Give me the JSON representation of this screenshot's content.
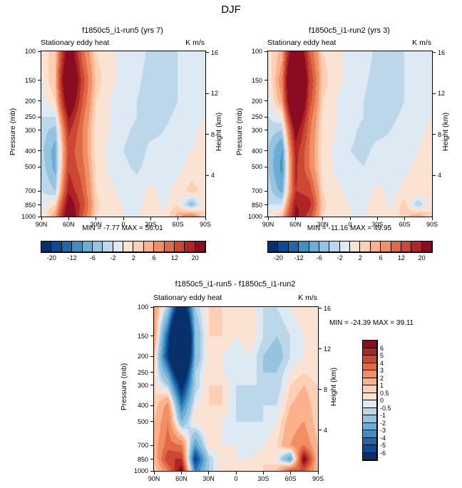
{
  "page_title": "DJF",
  "axes": {
    "pressure_label": "Pressure (mb)",
    "height_label": "Height (km)",
    "pressure_ticks": [
      100,
      150,
      200,
      250,
      300,
      400,
      500,
      700,
      850,
      1000
    ],
    "height_ticks": [
      16,
      12,
      8,
      4
    ],
    "lat_ticks": [
      "90N",
      "60N",
      "30N",
      "0",
      "30S",
      "60S",
      "90S"
    ]
  },
  "colorbars": {
    "flux": {
      "orientation": "horizontal",
      "boundaries": [
        -20,
        -16,
        -12,
        -9,
        -6,
        -4,
        -2,
        0,
        2,
        4,
        6,
        9,
        12,
        16,
        20
      ],
      "colors": [
        "#08306b",
        "#0d4a93",
        "#2166ac",
        "#3f8fc0",
        "#6aadd5",
        "#94c4df",
        "#bdd7ea",
        "#dde9f3",
        "#fbe3d4",
        "#fdd0b5",
        "#fcb18d",
        "#f28e63",
        "#e06a46",
        "#cc4734",
        "#b02425",
        "#8a0c20"
      ],
      "tick_labels": [
        "-20",
        "-12",
        "-6",
        "-2",
        "2",
        "6",
        "12",
        "20"
      ],
      "tick_boundary_indices": [
        0,
        2,
        4,
        6,
        8,
        10,
        12,
        14
      ]
    },
    "diff": {
      "orientation": "vertical",
      "boundaries": [
        -6,
        -5,
        -4,
        -3,
        -2,
        -1,
        -0.5,
        0,
        0.5,
        1,
        2,
        3,
        4,
        5,
        6
      ],
      "colors": [
        "#08306b",
        "#0d4a93",
        "#2166ac",
        "#3f8fc0",
        "#6aadd5",
        "#94c4df",
        "#bdd7ea",
        "#dde9f3",
        "#fbe3d4",
        "#fdd0b5",
        "#fcb18d",
        "#f28e63",
        "#e06a46",
        "#cc4734",
        "#b02425",
        "#8a0c20"
      ],
      "tick_labels_top_to_bottom": [
        "6",
        "5",
        "4",
        "3",
        "2",
        "1",
        "0.5",
        "0",
        "-0.5",
        "-1",
        "-2",
        "-3",
        "-4",
        "-5",
        "-6"
      ]
    }
  },
  "chart_data": [
    {
      "type": "heatmap",
      "title": "f1850c5_i1-run5 (yrs 7)",
      "subtitle": "Stationary eddy heat",
      "units": "K m/s",
      "ylabel": "Pressure (mb)",
      "ylabel_right": "Height (km)",
      "xlabel": "",
      "minmax": "MIN = -7.77  MAX =  56.01",
      "min": -7.77,
      "max": 56.01,
      "colorbar": "flux",
      "x": [
        "90N",
        "75N",
        "60N",
        "45N",
        "30N",
        "15N",
        "0",
        "15S",
        "30S",
        "45S",
        "60S",
        "75S",
        "90S"
      ],
      "pressure_levels": [
        100,
        150,
        200,
        250,
        300,
        400,
        500,
        700,
        850,
        1000
      ],
      "values": [
        [
          1,
          3,
          26,
          10,
          2,
          0.5,
          -0.5,
          -1,
          -2.5,
          -3,
          -2,
          -0.5,
          0
        ],
        [
          0,
          4,
          34,
          14,
          3,
          0.5,
          -0.5,
          -1.5,
          -3,
          -3.5,
          -2,
          -0.5,
          0
        ],
        [
          -1,
          2,
          28,
          12,
          2,
          0,
          -1,
          -2,
          -3.5,
          -3,
          -2,
          -0.5,
          0
        ],
        [
          -2,
          -2,
          21,
          10,
          1.5,
          0,
          -1,
          -2,
          -3,
          -2.5,
          -1.5,
          -0.5,
          0
        ],
        [
          -3,
          -5,
          17,
          9,
          1,
          0,
          -1.5,
          -2.5,
          -2.5,
          -2,
          -1,
          -0.5,
          0.5
        ],
        [
          -3.5,
          -7,
          14,
          9,
          1,
          -0.5,
          -2,
          -3,
          -1.5,
          -1.5,
          -0.5,
          0,
          0.5
        ],
        [
          -3,
          -7,
          15,
          10,
          1.5,
          -0.5,
          -1.5,
          -2.5,
          -1,
          -1,
          -0.5,
          0.5,
          1
        ],
        [
          -2,
          -4,
          19,
          12,
          2,
          0.5,
          -0.5,
          -1,
          0.5,
          -0.5,
          0.5,
          3,
          1
        ],
        [
          -1,
          2,
          24,
          14,
          2.5,
          0.5,
          0,
          -0.5,
          1,
          -0.5,
          2,
          -6,
          2
        ],
        [
          0,
          6,
          28,
          12,
          2,
          0.5,
          0,
          0,
          1,
          0.5,
          5,
          9,
          2
        ]
      ]
    },
    {
      "type": "heatmap",
      "title": "f1850c5_i1-run2 (yrs 3)",
      "subtitle": "Stationary eddy heat",
      "units": "K m/s",
      "ylabel": "Pressure (mb)",
      "ylabel_right": "Height (km)",
      "xlabel": "",
      "minmax": "MIN = -11.16  MAX =  49.95",
      "min": -11.16,
      "max": 49.95,
      "colorbar": "flux",
      "x": [
        "90N",
        "75N",
        "60N",
        "45N",
        "30N",
        "15N",
        "0",
        "15S",
        "30S",
        "45S",
        "60S",
        "75S",
        "90S"
      ],
      "pressure_levels": [
        100,
        150,
        200,
        250,
        300,
        400,
        500,
        700,
        850,
        1000
      ],
      "values": [
        [
          1,
          5,
          32,
          12,
          2,
          0.5,
          -0.5,
          -1,
          -2.5,
          -3,
          -2,
          -0.5,
          0
        ],
        [
          0,
          8,
          44,
          16,
          3,
          0.5,
          -0.5,
          -1.5,
          -3,
          -3.5,
          -2,
          -0.5,
          0
        ],
        [
          -1,
          6,
          40,
          14,
          2,
          0,
          -1,
          -2,
          -3.5,
          -3,
          -2,
          -0.5,
          0
        ],
        [
          -2,
          0,
          30,
          11,
          1.5,
          0,
          -1,
          -2,
          -3,
          -2.5,
          -1.5,
          -0.5,
          0
        ],
        [
          -3,
          -4,
          23,
          10,
          1,
          0,
          -1.5,
          -2.5,
          -2.5,
          -2,
          -1,
          -0.5,
          0.5
        ],
        [
          -4,
          -9,
          18,
          9,
          1,
          -0.5,
          -2,
          -2.5,
          -1.5,
          -1.5,
          -0.5,
          0,
          0.5
        ],
        [
          -4,
          -10,
          17,
          9,
          1,
          -0.5,
          -1.5,
          -2,
          -1,
          -1,
          -0.5,
          0.5,
          0.5
        ],
        [
          -3,
          -7,
          16,
          14,
          2,
          0.5,
          -0.5,
          -1,
          0.5,
          -0.5,
          0.5,
          2,
          1
        ],
        [
          -2,
          -2,
          20,
          18,
          2.5,
          0.5,
          0,
          -0.5,
          1,
          -0.5,
          3,
          -4,
          2
        ],
        [
          0,
          4,
          22,
          14,
          2,
          0.5,
          0,
          0,
          1,
          0.5,
          3,
          6,
          2
        ]
      ]
    },
    {
      "type": "heatmap",
      "title": "f1850c5_i1-run5 - f1850c5_i1-run2",
      "subtitle": "Stationary eddy heat",
      "units": "K m/s",
      "ylabel": "Pressure (mb)",
      "ylabel_right": "Height (km)",
      "xlabel": "",
      "minmax": "MIN = -24.39  MAX =  39.11",
      "min": -24.39,
      "max": 39.11,
      "colorbar": "diff",
      "x": [
        "90N",
        "75N",
        "60N",
        "45N",
        "30N",
        "15N",
        "0",
        "15S",
        "30S",
        "45S",
        "60S",
        "75S",
        "90S"
      ],
      "pressure_levels": [
        100,
        150,
        200,
        250,
        300,
        400,
        500,
        700,
        850,
        1000
      ],
      "values": [
        [
          2,
          -1,
          -9,
          -1,
          0.5,
          0.5,
          0,
          0.5,
          -0.5,
          -0.5,
          0,
          0.5,
          0
        ],
        [
          2,
          -5,
          -16,
          -2,
          0.5,
          0.5,
          0,
          0.5,
          -0.5,
          -1,
          -0.5,
          0,
          0
        ],
        [
          1,
          -6,
          -14,
          -2,
          0.5,
          0,
          -0.5,
          0,
          -1,
          -1.5,
          -0.5,
          0,
          0
        ],
        [
          0.5,
          -3,
          -10,
          -1,
          0.5,
          0,
          -0.5,
          0,
          -1,
          -1,
          0,
          0.5,
          0
        ],
        [
          0.5,
          -1,
          -7,
          -1,
          0.5,
          0.5,
          -0.5,
          -0.5,
          -0.5,
          -1,
          0.5,
          1,
          0.5
        ],
        [
          0.5,
          2.5,
          -4,
          0,
          0.5,
          0.5,
          -0.5,
          -1,
          -0.5,
          -0.5,
          1,
          1.5,
          0.5
        ],
        [
          1,
          3,
          -2,
          0.5,
          0.5,
          0,
          -0.5,
          -0.5,
          -0.5,
          0,
          1.5,
          2,
          0.5
        ],
        [
          1.5,
          3.5,
          3,
          -3,
          0.5,
          0,
          0,
          -0.5,
          0,
          0.5,
          2,
          3,
          1
        ],
        [
          1,
          5,
          5,
          -6,
          -1,
          0.5,
          0,
          0,
          0.5,
          0,
          -3,
          7,
          1
        ],
        [
          0.5,
          3,
          7,
          -4,
          -1,
          0.5,
          0.5,
          0,
          0.5,
          1,
          4,
          4,
          1
        ]
      ]
    }
  ]
}
